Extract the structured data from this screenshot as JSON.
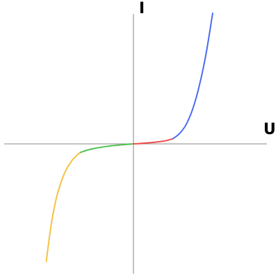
{
  "chart_data": {
    "type": "line",
    "title": "",
    "xlabel": "U",
    "ylabel": "I",
    "xlim": [
      -1,
      1
    ],
    "ylim": [
      -1,
      1
    ],
    "grid": false,
    "legend": "none",
    "axes_cross_at_origin": true,
    "ticks": false,
    "colors": {
      "axis": "#a0a0a0",
      "reverse_steep": "#f5c242",
      "reverse_flat": "#4ec24e",
      "forward_flat": "#f04a4a",
      "forward_steep": "#4a6cf0"
    },
    "series": [
      {
        "color": "#f5c242",
        "x": [
          -0.66,
          -0.64,
          -0.62,
          -0.6,
          -0.58,
          -0.56,
          -0.54,
          -0.52,
          -0.5,
          -0.48,
          -0.46,
          -0.44,
          -0.42,
          -0.4
        ],
        "y": [
          -0.9,
          -0.74,
          -0.6,
          -0.49,
          -0.4,
          -0.33,
          -0.27,
          -0.22,
          -0.18,
          -0.15,
          -0.12,
          -0.1,
          -0.08,
          -0.065
        ]
      },
      {
        "color": "#4ec24e",
        "x": [
          -0.4,
          -0.35,
          -0.3,
          -0.25,
          -0.2,
          -0.15,
          -0.1,
          -0.05,
          0
        ],
        "y": [
          -0.065,
          -0.048,
          -0.036,
          -0.027,
          -0.019,
          -0.013,
          -0.008,
          -0.004,
          0
        ]
      },
      {
        "color": "#f04a4a",
        "x": [
          0,
          0.05,
          0.1,
          0.15,
          0.2,
          0.25,
          0.3
        ],
        "y": [
          0,
          0.003,
          0.007,
          0.011,
          0.017,
          0.025,
          0.04
        ]
      },
      {
        "color": "#4a6cf0",
        "x": [
          0.3,
          0.35,
          0.4,
          0.45,
          0.5,
          0.55,
          0.6
        ],
        "y": [
          0.04,
          0.08,
          0.15,
          0.27,
          0.45,
          0.69,
          1.0
        ]
      }
    ]
  }
}
